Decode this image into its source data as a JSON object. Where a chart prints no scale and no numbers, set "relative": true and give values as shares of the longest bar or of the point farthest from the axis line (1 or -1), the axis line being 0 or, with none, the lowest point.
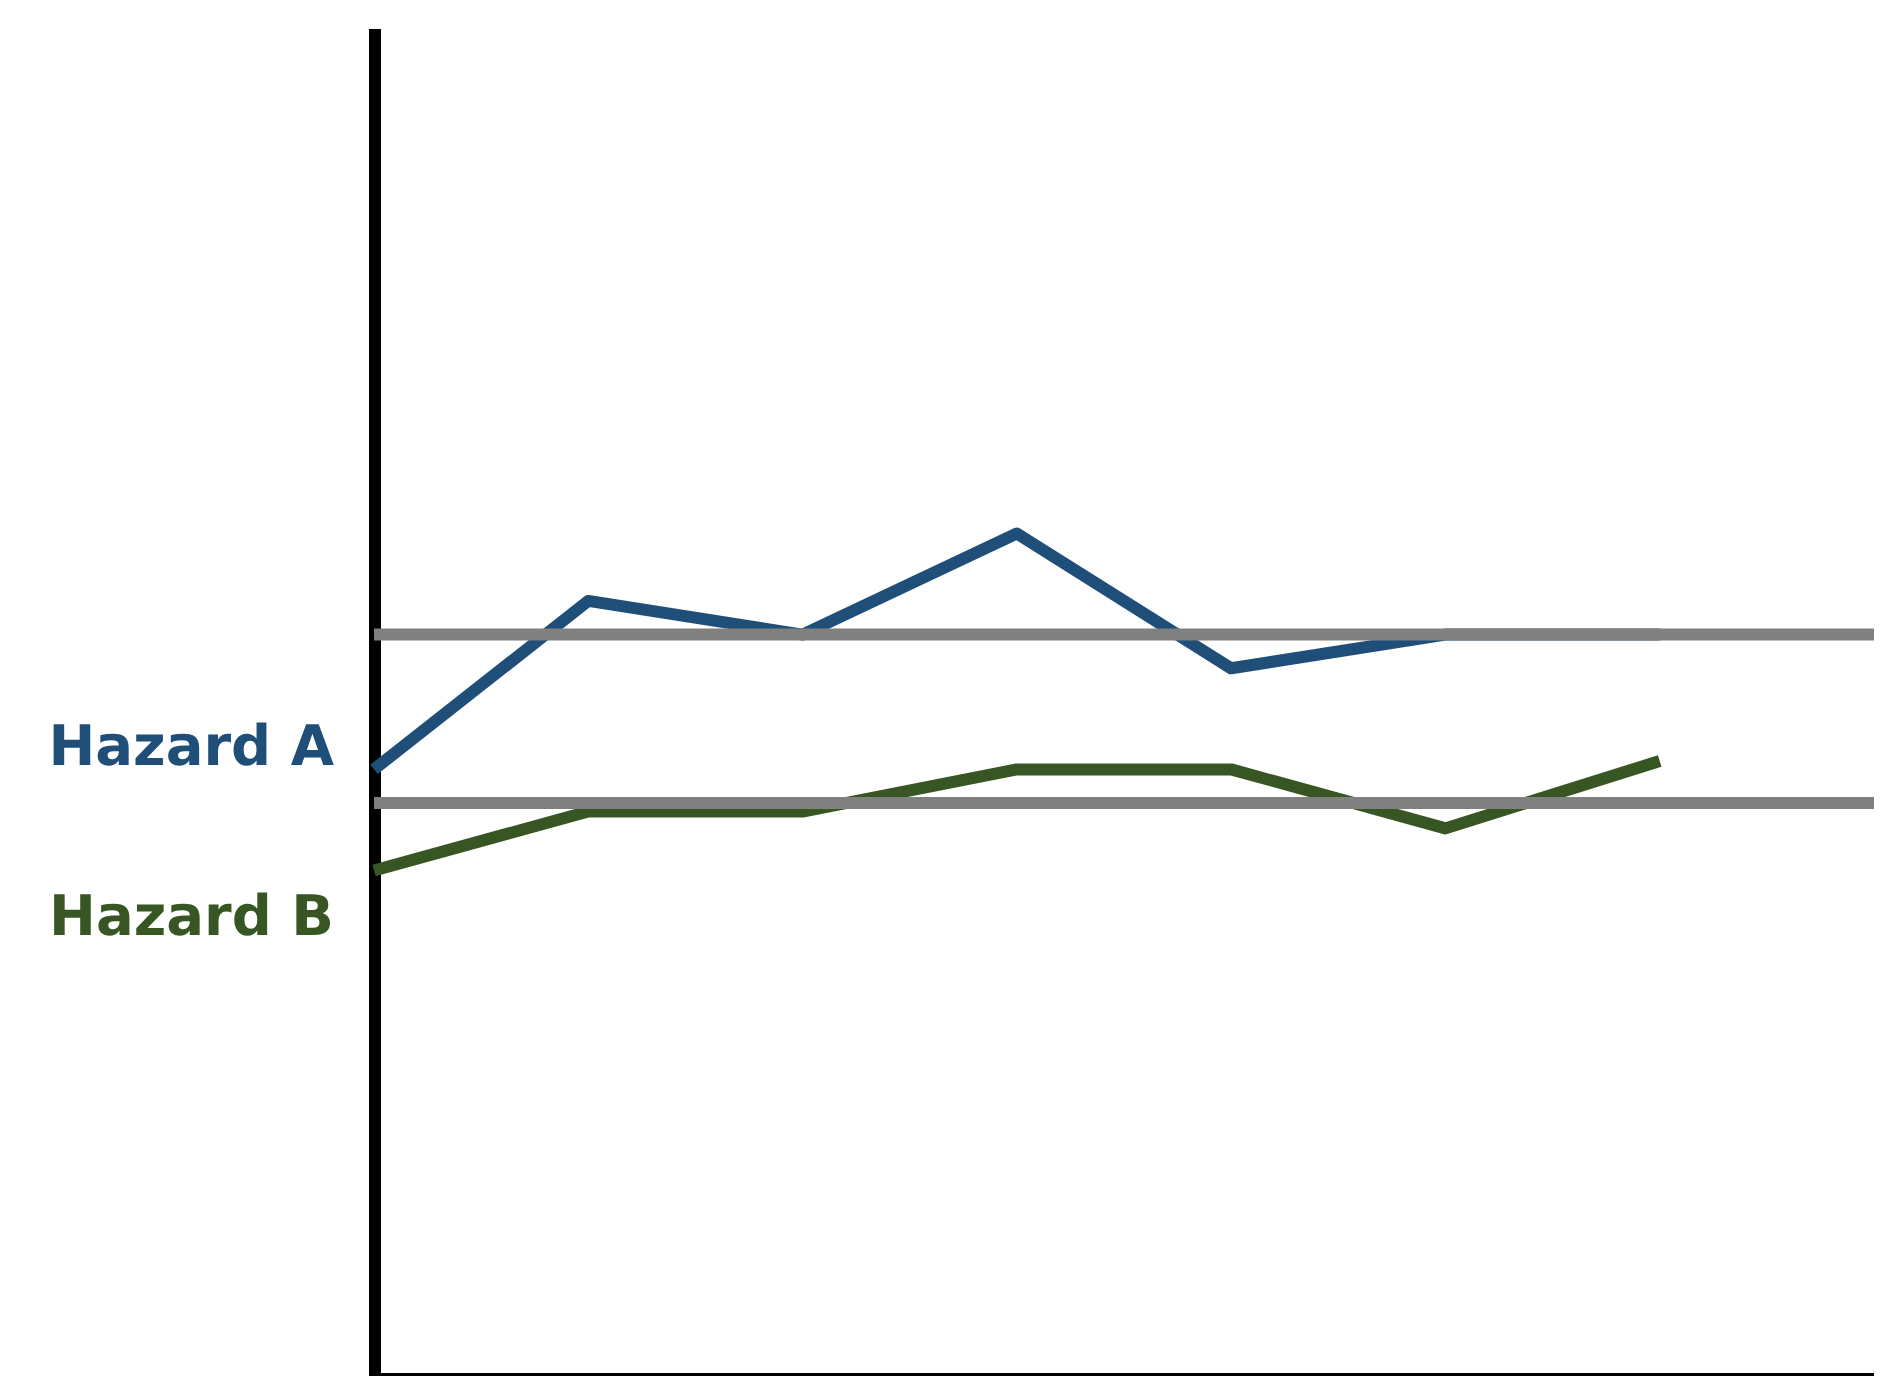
{
  "chart_data": {
    "type": "line",
    "relative": true,
    "categories": [
      null,
      null,
      null,
      null,
      null,
      null,
      null
    ],
    "series": [
      {
        "name": "Hazard A",
        "color": "#1f4e79",
        "values": [
          0.72,
          0.92,
          0.88,
          1,
          0.84,
          0.88,
          0.88
        ]
      },
      {
        "name": "Hazard B",
        "color": "#375623",
        "values": [
          0.6,
          0.67,
          0.67,
          0.72,
          0.72,
          0.65,
          0.73
        ]
      }
    ],
    "ref_lines": [
      {
        "axis": "y",
        "value": 0.88,
        "color": "#808080"
      },
      {
        "axis": "y",
        "value": 0.68,
        "color": "#808080"
      }
    ],
    "legend": false,
    "marker": "none",
    "line_style": "solid"
  }
}
